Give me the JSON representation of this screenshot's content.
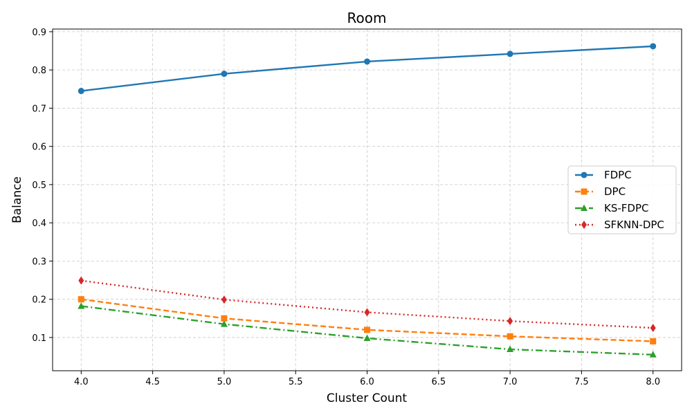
{
  "chart_data": {
    "type": "line",
    "title": "Room",
    "xlabel": "Cluster Count",
    "ylabel": "Balance",
    "x": [
      4.0,
      5.0,
      6.0,
      7.0,
      8.0
    ],
    "xlim": [
      3.8,
      8.2
    ],
    "ylim": [
      0.013,
      0.907
    ],
    "xticks": [
      "4.0",
      "4.5",
      "5.0",
      "5.5",
      "6.0",
      "6.5",
      "7.0",
      "7.5",
      "8.0"
    ],
    "yticks": [
      "0.1",
      "0.2",
      "0.3",
      "0.4",
      "0.5",
      "0.6",
      "0.7",
      "0.8",
      "0.9"
    ],
    "grid": true,
    "legend_position": "center-right",
    "series": [
      {
        "name": "FDPC",
        "values": [
          0.745,
          0.79,
          0.822,
          0.842,
          0.862
        ],
        "color": "#1f77b4",
        "marker": "circle",
        "linestyle": "solid"
      },
      {
        "name": "DPC",
        "values": [
          0.2,
          0.15,
          0.12,
          0.103,
          0.09
        ],
        "color": "#ff7f0e",
        "marker": "square",
        "linestyle": "dashed"
      },
      {
        "name": "KS-FDPC",
        "values": [
          0.182,
          0.135,
          0.098,
          0.069,
          0.055
        ],
        "color": "#2ca02c",
        "marker": "triangle",
        "linestyle": "dashdot"
      },
      {
        "name": "SFKNN-DPC",
        "values": [
          0.249,
          0.199,
          0.166,
          0.143,
          0.125
        ],
        "color": "#d62728",
        "marker": "diamond",
        "linestyle": "dotted"
      }
    ]
  }
}
